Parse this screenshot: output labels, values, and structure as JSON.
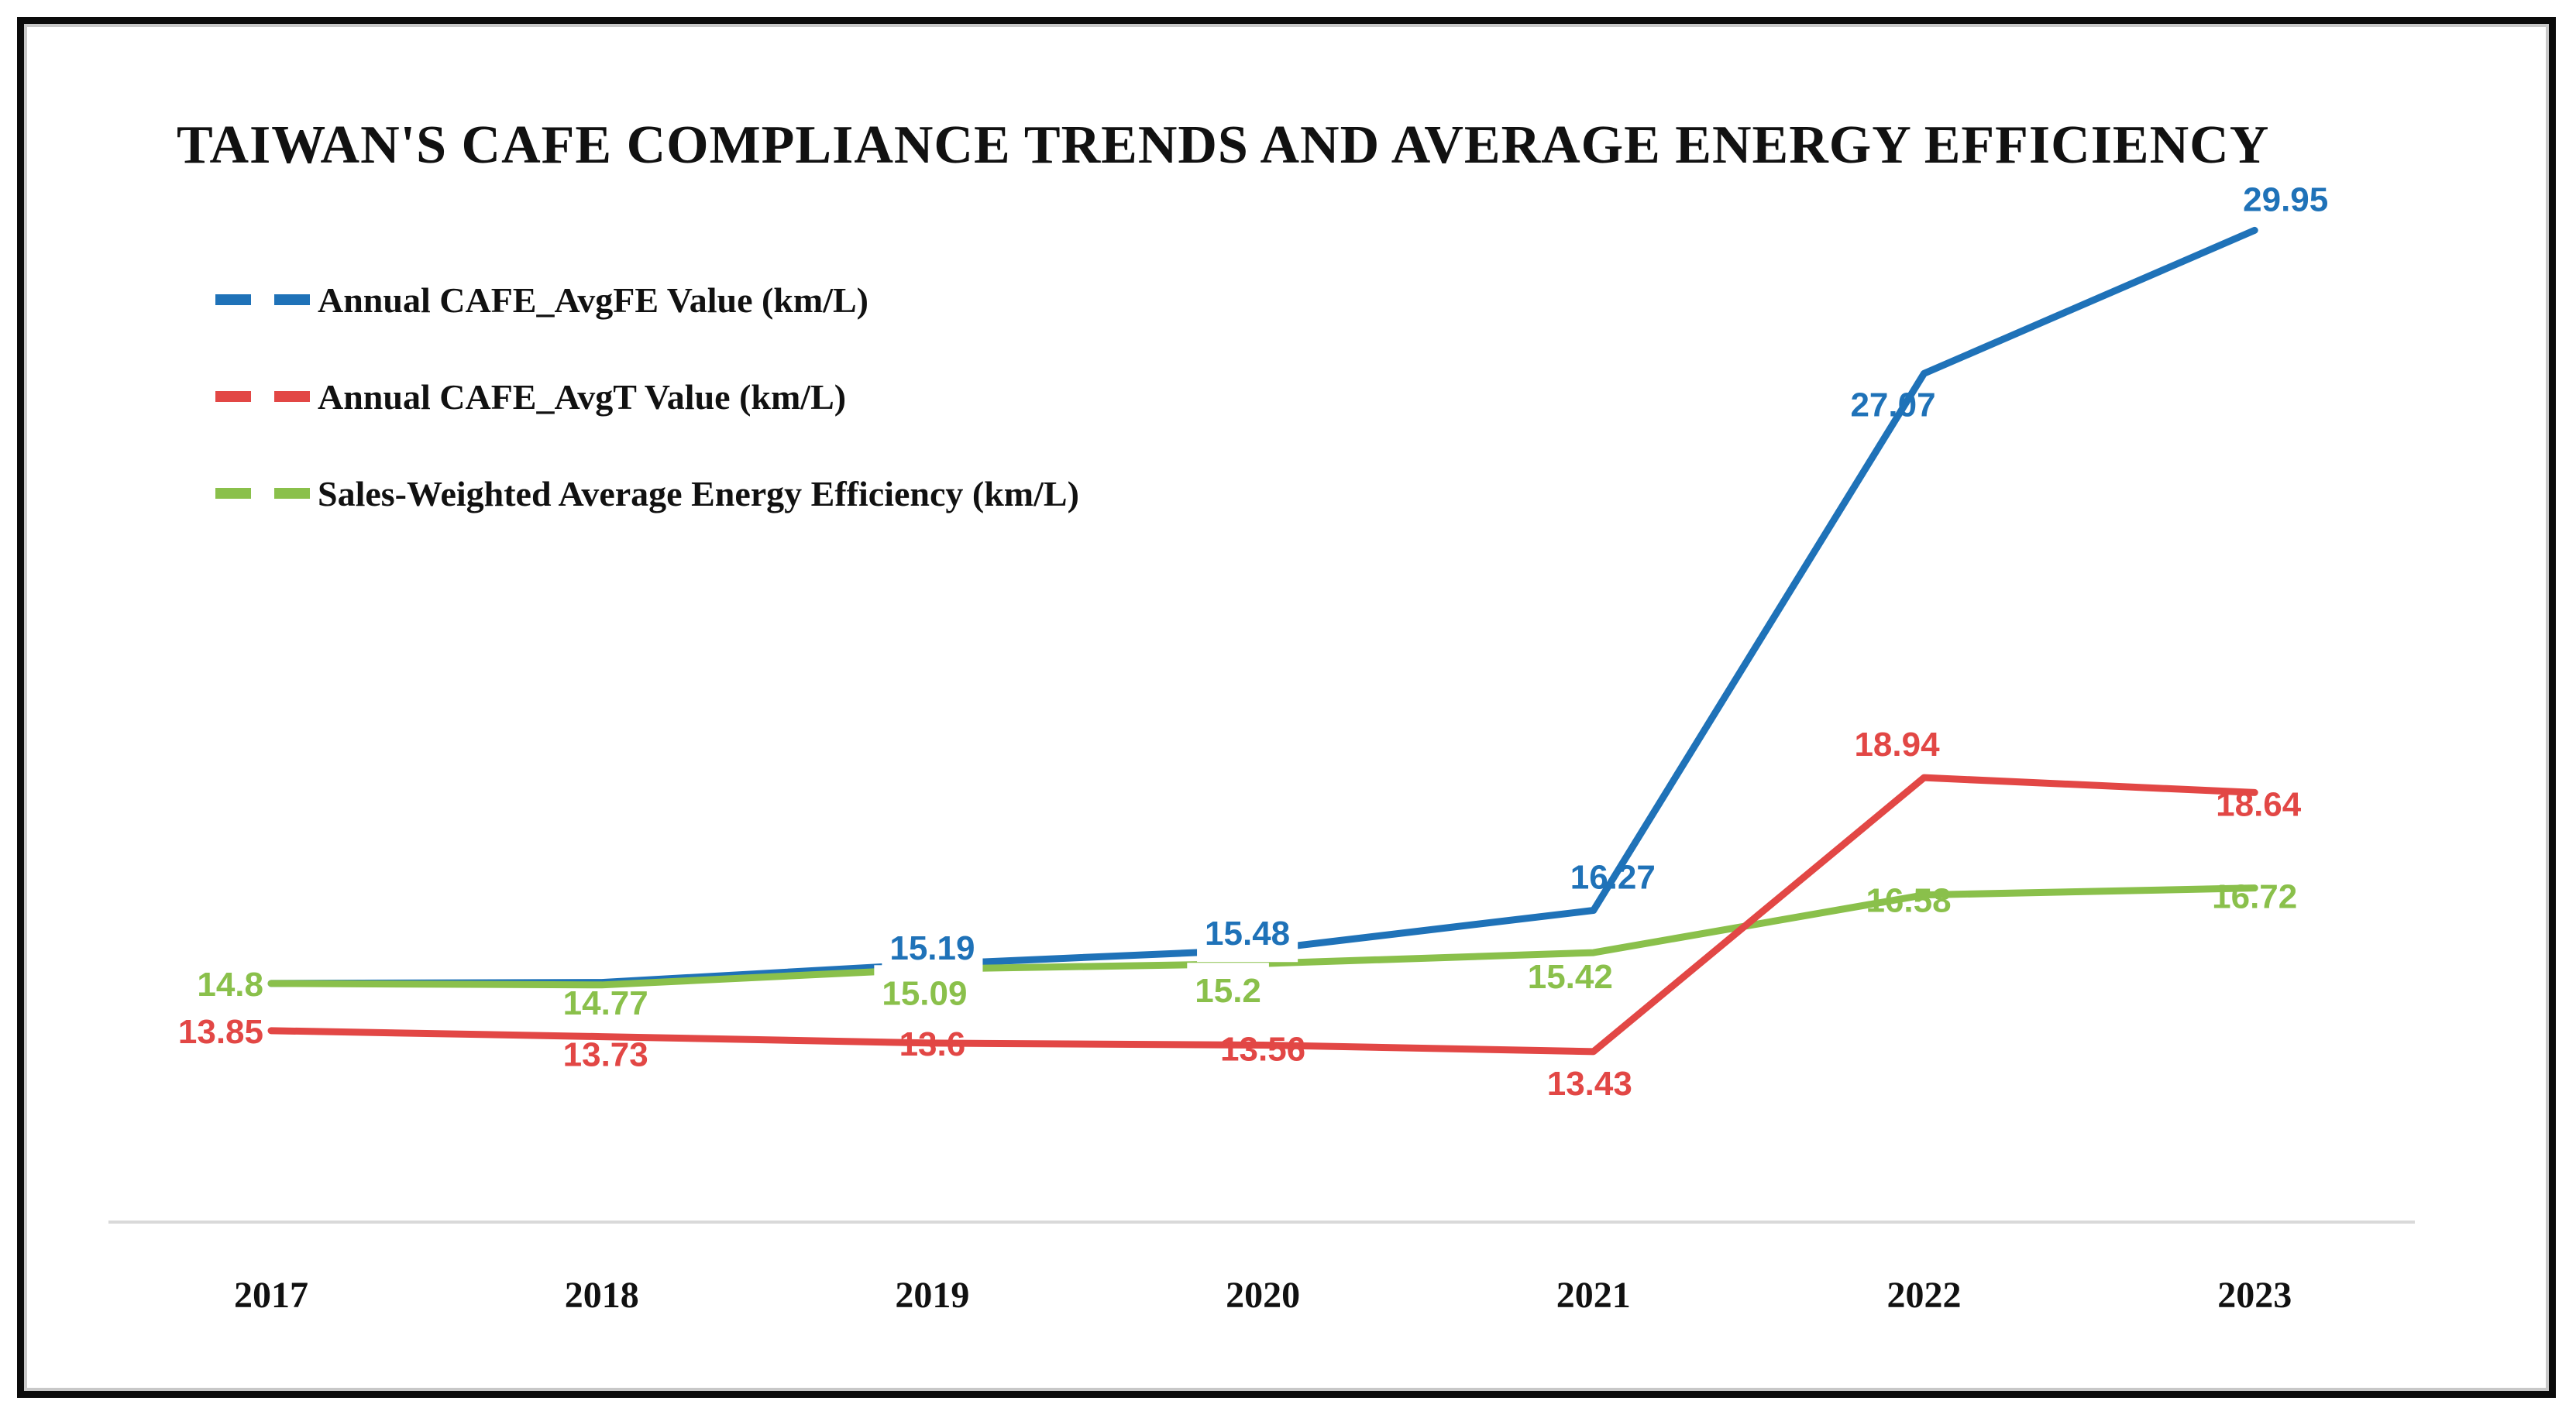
{
  "chart_data": {
    "type": "line",
    "title": "TAIWAN'S CAFE COMPLIANCE TRENDS AND AVERAGE ENERGY EFFICIENCY",
    "categories": [
      "2017",
      "2018",
      "2019",
      "2020",
      "2021",
      "2022",
      "2023"
    ],
    "series": [
      {
        "name": "Annual CAFE_AvgFE Value (km/L)",
        "color": "#1F72B8",
        "values": [
          14.8,
          14.82,
          15.19,
          15.48,
          16.27,
          27.07,
          29.95
        ],
        "point_labels": [
          "",
          "",
          "15.19",
          "15.48",
          "16.27",
          "27.07",
          "29.95"
        ]
      },
      {
        "name": "Annual CAFE_AvgT Value (km/L)",
        "color": "#E24745",
        "values": [
          13.85,
          13.73,
          13.6,
          13.56,
          13.43,
          18.94,
          18.64
        ],
        "point_labels": [
          "13.85",
          "13.73",
          "13.6",
          "13.56",
          "13.43",
          "18.94",
          "18.64"
        ]
      },
      {
        "name": "Sales-Weighted Average Energy Efficiency (km/L)",
        "color": "#8AC04B",
        "values": [
          14.8,
          14.77,
          15.09,
          15.2,
          15.42,
          16.58,
          16.72
        ],
        "point_labels": [
          "14.8",
          "14.77",
          "15.09",
          "15.2",
          "15.42",
          "16.58",
          "16.72"
        ]
      }
    ],
    "xlabel": "",
    "ylabel": "",
    "ylim": [
      10,
      31
    ],
    "grid": false,
    "legend_position": "top-left",
    "axis_line_color": "#D9D9D9",
    "text_color": "#111111",
    "background": "#FFFFFF"
  }
}
